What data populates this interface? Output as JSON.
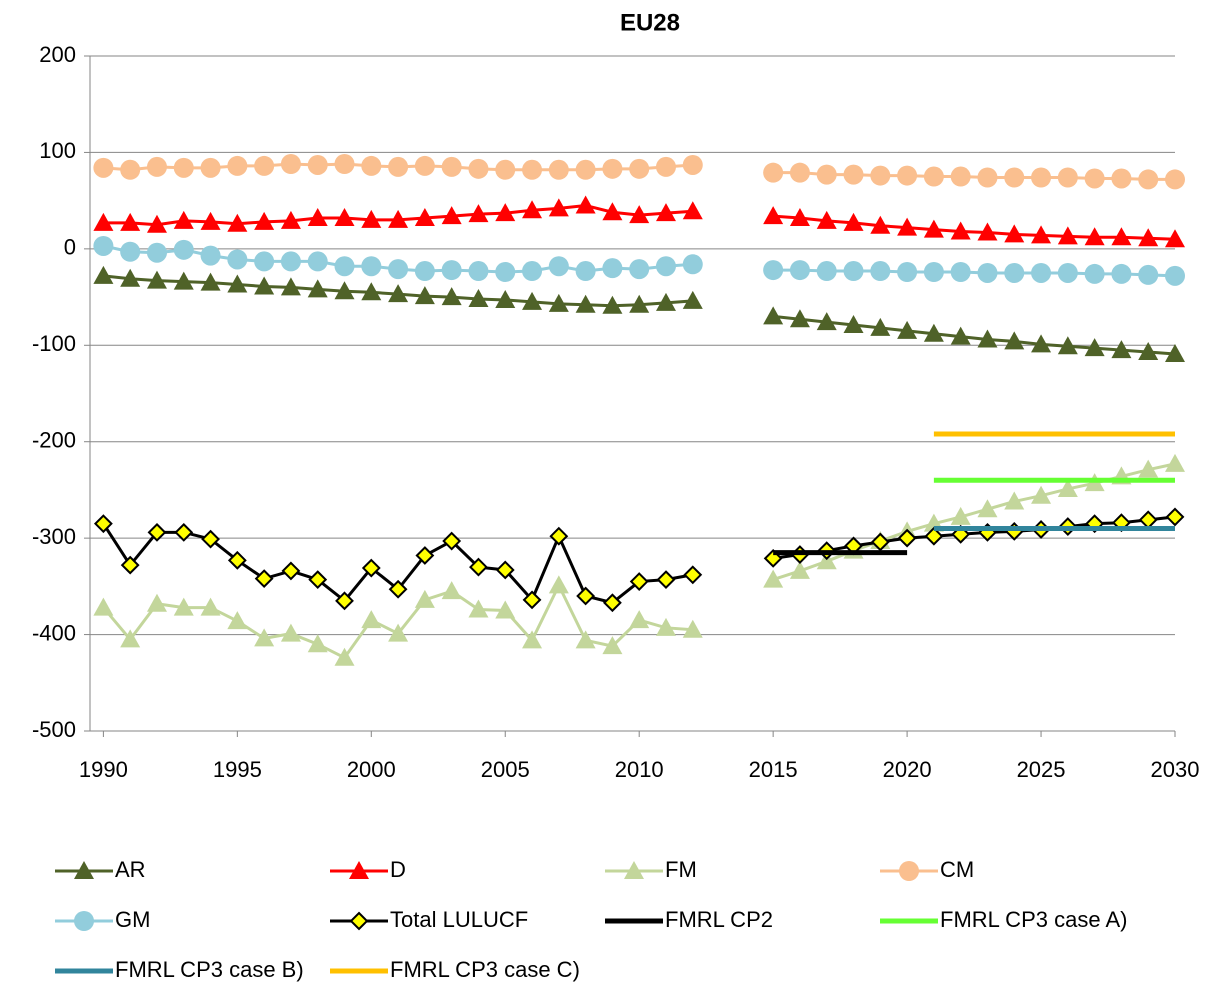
{
  "chart_data": {
    "type": "line",
    "title": "EU28",
    "x": [
      1990,
      1991,
      1992,
      1993,
      1994,
      1995,
      1996,
      1997,
      1998,
      1999,
      2000,
      2001,
      2002,
      2003,
      2004,
      2005,
      2006,
      2007,
      2008,
      2009,
      2010,
      2011,
      2012,
      2013,
      2014,
      2015,
      2016,
      2017,
      2018,
      2019,
      2020,
      2021,
      2022,
      2023,
      2024,
      2025,
      2026,
      2027,
      2028,
      2029,
      2030
    ],
    "xlim": [
      1989.5,
      2030
    ],
    "xticks": [
      1990,
      1995,
      2000,
      2005,
      2010,
      2015,
      2020,
      2025,
      2030
    ],
    "ylim": [
      -500,
      200
    ],
    "yticks": [
      -500,
      -400,
      -300,
      -200,
      -100,
      0,
      100,
      200
    ],
    "grid": true,
    "series": [
      {
        "name": "AR",
        "color": "#4f6228",
        "marker": "triangle",
        "values": [
          -28,
          -31,
          -33,
          -34,
          -35,
          -37,
          -39,
          -40,
          -42,
          -44,
          -45,
          -47,
          -49,
          -50,
          -52,
          -53,
          -55,
          -57,
          -58,
          -59,
          -58,
          -56,
          -54,
          null,
          null,
          -70,
          -73,
          -76,
          -79,
          -82,
          -85,
          -88,
          -91,
          -94,
          -96,
          -99,
          -101,
          -103,
          -105,
          -107,
          -109
        ]
      },
      {
        "name": "D",
        "color": "#ff0000",
        "marker": "triangle",
        "values": [
          27,
          27,
          25,
          29,
          28,
          26,
          28,
          29,
          32,
          32,
          30,
          30,
          32,
          34,
          36,
          37,
          40,
          42,
          45,
          38,
          35,
          37,
          39,
          null,
          null,
          34,
          32,
          29,
          27,
          24,
          22,
          20,
          18,
          17,
          15,
          14,
          13,
          12,
          12,
          11,
          10
        ]
      },
      {
        "name": "FM",
        "color": "#c3d69b",
        "marker": "triangle",
        "values": [
          -372,
          -405,
          -368,
          -372,
          -372,
          -386,
          -404,
          -399,
          -410,
          -424,
          -385,
          -399,
          -364,
          -355,
          -374,
          -375,
          -406,
          -349,
          -406,
          -412,
          -385,
          -393,
          -395,
          null,
          null,
          -343,
          -334,
          -324,
          -313,
          -303,
          -293,
          -285,
          -278,
          -270,
          -262,
          -256,
          -249,
          -243,
          -236,
          -229,
          -223
        ]
      },
      {
        "name": "CM",
        "color": "#fabf8f",
        "marker": "circle",
        "values": [
          84,
          82,
          85,
          84,
          84,
          86,
          86,
          88,
          87,
          88,
          86,
          85,
          86,
          85,
          83,
          82,
          82,
          82,
          82,
          83,
          83,
          85,
          87,
          null,
          null,
          79,
          79,
          77,
          77,
          76,
          76,
          75,
          75,
          74,
          74,
          74,
          74,
          73,
          73,
          72,
          72
        ]
      },
      {
        "name": "GM",
        "color": "#92cddc",
        "marker": "circle",
        "values": [
          3,
          -3,
          -4,
          -1,
          -7,
          -11,
          -13,
          -13,
          -13,
          -18,
          -18,
          -21,
          -23,
          -22,
          -23,
          -24,
          -23,
          -18,
          -23,
          -20,
          -21,
          -18,
          -16,
          null,
          null,
          -22,
          -22,
          -23,
          -23,
          -23,
          -24,
          -24,
          -24,
          -25,
          -25,
          -25,
          -25,
          -26,
          -26,
          -27,
          -28
        ]
      },
      {
        "name": "Total LULUCF",
        "color": "#000000",
        "marker": "diamond",
        "values": [
          -285,
          -328,
          -294,
          -294,
          -301,
          -323,
          -342,
          -334,
          -343,
          -365,
          -331,
          -353,
          -318,
          -303,
          -330,
          -333,
          -364,
          -298,
          -360,
          -367,
          -345,
          -343,
          -338,
          null,
          null,
          -321,
          -317,
          -313,
          -308,
          -304,
          -300,
          -298,
          -296,
          -294,
          -293,
          -291,
          -288,
          -285,
          -284,
          -281,
          -278
        ]
      },
      {
        "name": "FMRL CP2",
        "color": "#000000",
        "marker": "none",
        "values": [
          null,
          null,
          null,
          null,
          null,
          null,
          null,
          null,
          null,
          null,
          null,
          null,
          null,
          null,
          null,
          null,
          null,
          null,
          null,
          null,
          null,
          null,
          null,
          null,
          null,
          -315,
          -315,
          -315,
          -315,
          -315,
          -315,
          null,
          null,
          null,
          null,
          null,
          null,
          null,
          null,
          null,
          null
        ]
      },
      {
        "name": "FMRL CP3 case A)",
        "color": "#66ff33",
        "marker": "none",
        "values": [
          null,
          null,
          null,
          null,
          null,
          null,
          null,
          null,
          null,
          null,
          null,
          null,
          null,
          null,
          null,
          null,
          null,
          null,
          null,
          null,
          null,
          null,
          null,
          null,
          null,
          null,
          null,
          null,
          null,
          null,
          null,
          -240,
          -240,
          -240,
          -240,
          -240,
          -240,
          -240,
          -240,
          -240,
          -240
        ]
      },
      {
        "name": "FMRL CP3 case B)",
        "color": "#31859c",
        "marker": "none",
        "values": [
          null,
          null,
          null,
          null,
          null,
          null,
          null,
          null,
          null,
          null,
          null,
          null,
          null,
          null,
          null,
          null,
          null,
          null,
          null,
          null,
          null,
          null,
          null,
          null,
          null,
          null,
          null,
          null,
          null,
          null,
          null,
          -290,
          -290,
          -290,
          -290,
          -290,
          -290,
          -290,
          -290,
          -290,
          -290
        ]
      },
      {
        "name": "FMRL CP3 case C)",
        "color": "#ffc000",
        "marker": "none",
        "values": [
          null,
          null,
          null,
          null,
          null,
          null,
          null,
          null,
          null,
          null,
          null,
          null,
          null,
          null,
          null,
          null,
          null,
          null,
          null,
          null,
          null,
          null,
          null,
          null,
          null,
          null,
          null,
          null,
          null,
          null,
          null,
          -192,
          -192,
          -192,
          -192,
          -192,
          -192,
          -192,
          -192,
          -192,
          -192
        ]
      }
    ]
  }
}
